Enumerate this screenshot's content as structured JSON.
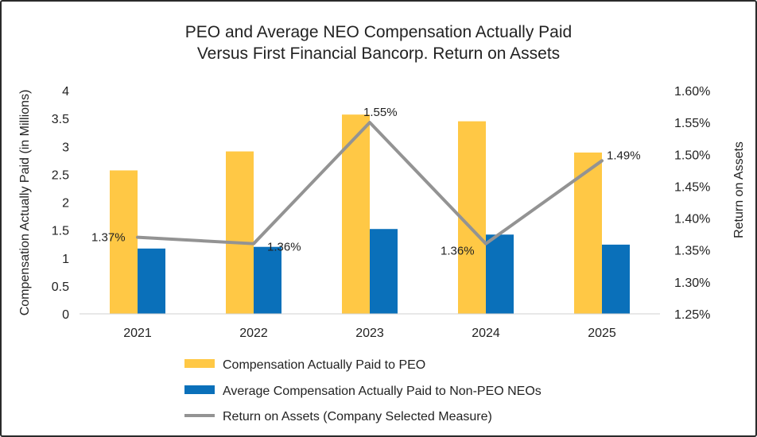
{
  "chart_data": {
    "type": "bar",
    "title": [
      "PEO and Average NEO Compensation Actually Paid",
      "Versus First Financial Bancorp. Return on Assets"
    ],
    "categories": [
      "2021",
      "2022",
      "2023",
      "2024",
      "2025"
    ],
    "series": [
      {
        "name": "Compensation Actually Paid to PEO",
        "type": "bar",
        "axis": "left",
        "color": "#FFC845",
        "values": [
          2.57,
          2.91,
          3.57,
          3.45,
          2.89
        ]
      },
      {
        "name": "Average Compensation Actually Paid to Non-PEO NEOs",
        "type": "bar",
        "axis": "left",
        "color": "#0A70BA",
        "values": [
          1.17,
          1.2,
          1.52,
          1.42,
          1.24
        ]
      },
      {
        "name": "Return on Assets (Company Selected Measure)",
        "type": "line",
        "axis": "right",
        "color": "#939393",
        "values": [
          1.37,
          1.36,
          1.55,
          1.36,
          1.49
        ],
        "labels": [
          "1.37%",
          "1.36%",
          "1.55%",
          "1.36%",
          "1.49%"
        ]
      }
    ],
    "ylabel": "Compensation Actually Paid  (in Millions)",
    "y2label": "Return on Assets",
    "ylim": [
      0,
      4
    ],
    "y2lim": [
      1.25,
      1.6
    ],
    "yticks": [
      "0",
      "0.5",
      "1",
      "1.5",
      "2",
      "2.5",
      "3",
      "3.5",
      "4"
    ],
    "y2ticks": [
      "1.25%",
      "1.30%",
      "1.35%",
      "1.40%",
      "1.45%",
      "1.50%",
      "1.55%",
      "1.60%"
    ],
    "grid": false,
    "legend": "bottom"
  }
}
